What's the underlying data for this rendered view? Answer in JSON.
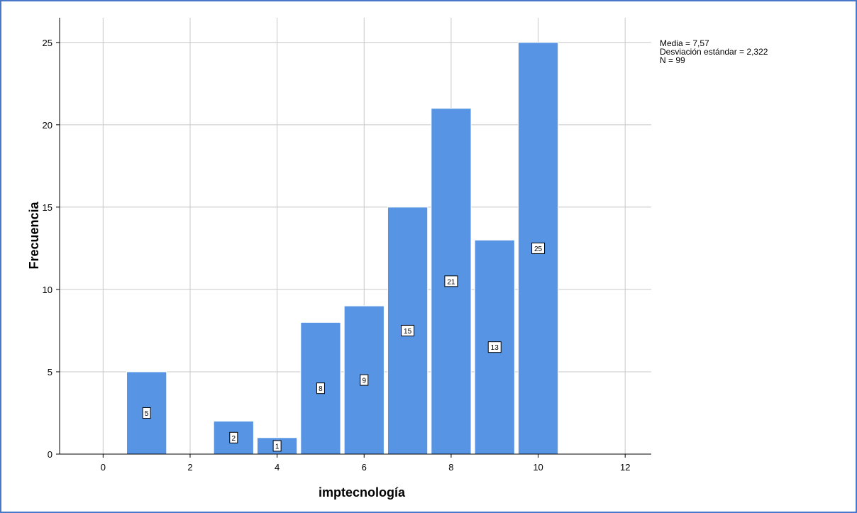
{
  "chart_data": {
    "type": "bar",
    "subtype": "histogram",
    "xlabel": "imptecnología",
    "ylabel": "Frecuencia",
    "x": [
      1,
      3,
      4,
      5,
      6,
      7,
      8,
      9,
      10
    ],
    "values": [
      5,
      2,
      1,
      8,
      9,
      15,
      21,
      13,
      25
    ],
    "data_labels": [
      "5",
      "2",
      "1",
      "8",
      "9",
      "15",
      "21",
      "13",
      "25"
    ],
    "bin_width": 0.95,
    "xlim": [
      -1.0,
      12.6
    ],
    "ylim": [
      0,
      26.5
    ],
    "x_ticks": [
      0,
      2,
      4,
      6,
      8,
      10,
      12
    ],
    "x_tick_labels": [
      "0",
      "2",
      "4",
      "6",
      "8",
      "10",
      "12"
    ],
    "y_ticks": [
      0,
      5,
      10,
      15,
      20,
      25
    ],
    "y_tick_labels": [
      "0",
      "5",
      "10",
      "15",
      "20",
      "25"
    ],
    "grid": true,
    "bar_color": "#5795e4",
    "grid_color": "#c8c8c8",
    "stats": {
      "mean": "Media = 7,57",
      "std": "Desviación estándar = 2,322",
      "n": "N = 99"
    }
  }
}
